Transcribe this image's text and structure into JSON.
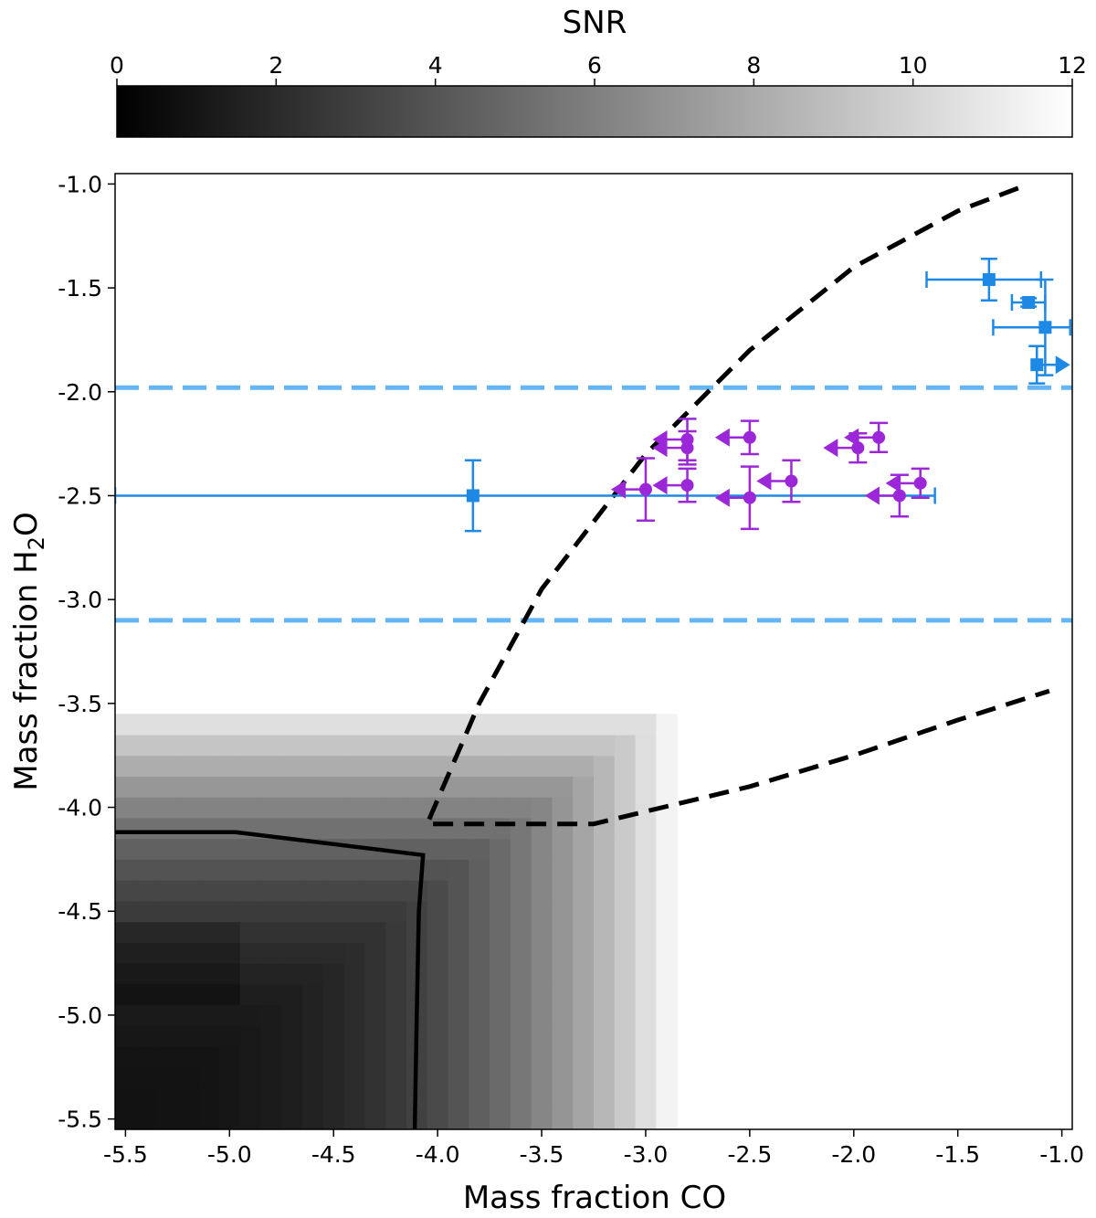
{
  "chart_data": {
    "type": "scatter",
    "xlabel_main": "Mass fraction CO",
    "ylabel_prefix": "Mass fraction H",
    "ylabel_sub": "2",
    "ylabel_suffix": "O",
    "xlim": [
      -5.55,
      -0.95
    ],
    "ylim": [
      -5.55,
      -0.95
    ],
    "x_ticks": [
      -5.5,
      -5.0,
      -4.5,
      -4.0,
      -3.5,
      -3.0,
      -2.5,
      -2.0,
      -1.5,
      -1.0
    ],
    "x_tick_labels": [
      "-5.5",
      "-5.0",
      "-4.5",
      "-4.0",
      "-3.5",
      "-3.0",
      "-2.5",
      "-2.0",
      "-1.5",
      "-1.0"
    ],
    "y_ticks": [
      -1.0,
      -1.5,
      -2.0,
      -2.5,
      -3.0,
      -3.5,
      -4.0,
      -4.5,
      -5.0,
      -5.5
    ],
    "y_tick_labels": [
      "-1.0",
      "-1.5",
      "-2.0",
      "-2.5",
      "-3.0",
      "-3.5",
      "-4.0",
      "-4.5",
      "-5.0",
      "-5.5"
    ],
    "colorbar": {
      "label": "SNR",
      "range": [
        0,
        12
      ],
      "ticks": [
        0,
        2,
        4,
        6,
        8,
        10,
        12
      ],
      "tick_labels": [
        "0",
        "2",
        "4",
        "6",
        "8",
        "10",
        "12"
      ],
      "colormap": "greys"
    },
    "snr_map_description": "grayscale SNR increasing from ~1 at low CO and H2O to >12 above about -3.3 in H2O or -2.6 in CO",
    "snr_contour_solid": [
      [
        -5.55,
        -4.12
      ],
      [
        -4.97,
        -4.12
      ],
      [
        -4.07,
        -4.23
      ],
      [
        -4.09,
        -4.5
      ],
      [
        -4.1,
        -5.0
      ],
      [
        -4.11,
        -5.55
      ]
    ],
    "dashed_boundary": [
      [
        -1.21,
        -1.02
      ],
      [
        -1.5,
        -1.13
      ],
      [
        -2.0,
        -1.4
      ],
      [
        -2.5,
        -1.8
      ],
      [
        -3.0,
        -2.3
      ],
      [
        -3.5,
        -2.95
      ],
      [
        -3.8,
        -3.5
      ],
      [
        -4.05,
        -4.08
      ],
      [
        -3.25,
        -4.08
      ],
      [
        -2.5,
        -3.9
      ],
      [
        -2.0,
        -3.75
      ],
      [
        -1.5,
        -3.58
      ],
      [
        -1.06,
        -3.44
      ]
    ],
    "blue_dashed_hlines": [
      -1.98,
      -3.1
    ],
    "colors": {
      "blue_points": "#1e88e5",
      "blue_dashed": "#64b5f6",
      "purple_points": "#9c27d8",
      "contour": "#000000"
    },
    "blue_points": [
      {
        "x": -1.35,
        "y": -1.46,
        "xerr": [
          0.3,
          0.25
        ],
        "yerr": [
          0.1,
          0.1
        ]
      },
      {
        "x": -1.16,
        "y": -1.57,
        "xerr": [
          0.08,
          0.08
        ],
        "yerr": [
          0.02,
          0.02
        ]
      },
      {
        "x": -1.08,
        "y": -1.69,
        "xerr": [
          0.25,
          0.12
        ],
        "yerr": [
          0.23,
          0.23
        ]
      },
      {
        "x": -1.12,
        "y": -1.87,
        "xerr": [
          0.0,
          0.0
        ],
        "yerr": [
          0.09,
          0.09
        ],
        "lower_limit_x": true
      },
      {
        "x": -3.83,
        "y": -2.5,
        "xerr": [
          1.72,
          2.22
        ],
        "yerr": [
          0.17,
          0.17
        ]
      }
    ],
    "purple_points": [
      {
        "x": -2.8,
        "y": -2.23,
        "yerr": [
          0.1,
          0.1
        ]
      },
      {
        "x": -2.8,
        "y": -2.27,
        "yerr": [
          0.08,
          0.08
        ]
      },
      {
        "x": -2.5,
        "y": -2.22,
        "yerr": [
          0.08,
          0.08
        ]
      },
      {
        "x": -1.98,
        "y": -2.27,
        "yerr": [
          0.07,
          0.07
        ]
      },
      {
        "x": -1.88,
        "y": -2.22,
        "yerr": [
          0.07,
          0.07
        ]
      },
      {
        "x": -2.8,
        "y": -2.45,
        "yerr": [
          0.08,
          0.08
        ]
      },
      {
        "x": -3.0,
        "y": -2.47,
        "yerr": [
          0.15,
          0.15
        ]
      },
      {
        "x": -2.5,
        "y": -2.51,
        "yerr": [
          0.15,
          0.15
        ]
      },
      {
        "x": -2.3,
        "y": -2.43,
        "yerr": [
          0.1,
          0.1
        ]
      },
      {
        "x": -1.78,
        "y": -2.5,
        "yerr": [
          0.1,
          0.1
        ]
      },
      {
        "x": -1.68,
        "y": -2.44,
        "yerr": [
          0.07,
          0.07
        ]
      }
    ],
    "grid": false
  }
}
